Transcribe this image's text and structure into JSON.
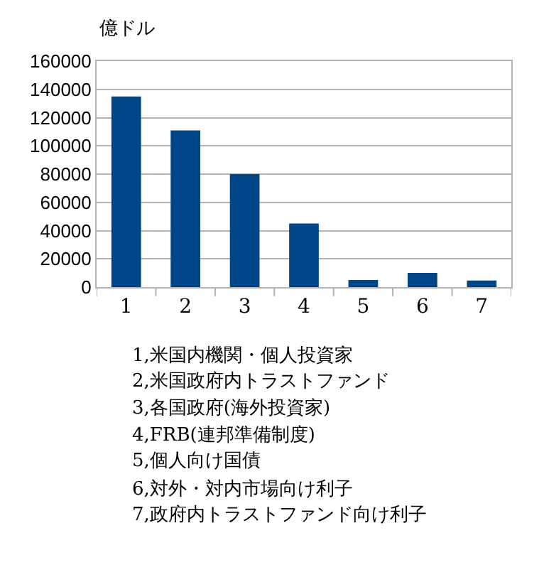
{
  "chart_data": {
    "type": "bar",
    "ylabel": "億ドル",
    "categories": [
      "1",
      "2",
      "3",
      "4",
      "5",
      "6",
      "7"
    ],
    "values": [
      135000,
      111000,
      80000,
      45000,
      5000,
      10000,
      4700
    ],
    "color": "#004586",
    "ylim": [
      0,
      160000
    ],
    "yticks": [
      0,
      20000,
      40000,
      60000,
      80000,
      100000,
      120000,
      140000,
      160000
    ],
    "grid": "y",
    "legend": false,
    "annotations": [
      "1,米国内機関・個人投資家",
      "2,米国政府内トラストファンド",
      "3,各国政府(海外投資家)",
      "4,FRB(連邦準備制度)",
      "5,個人向け国債",
      "6,対外・対内市場向け利子",
      "7,政府内トラストファンド向け利子"
    ]
  }
}
